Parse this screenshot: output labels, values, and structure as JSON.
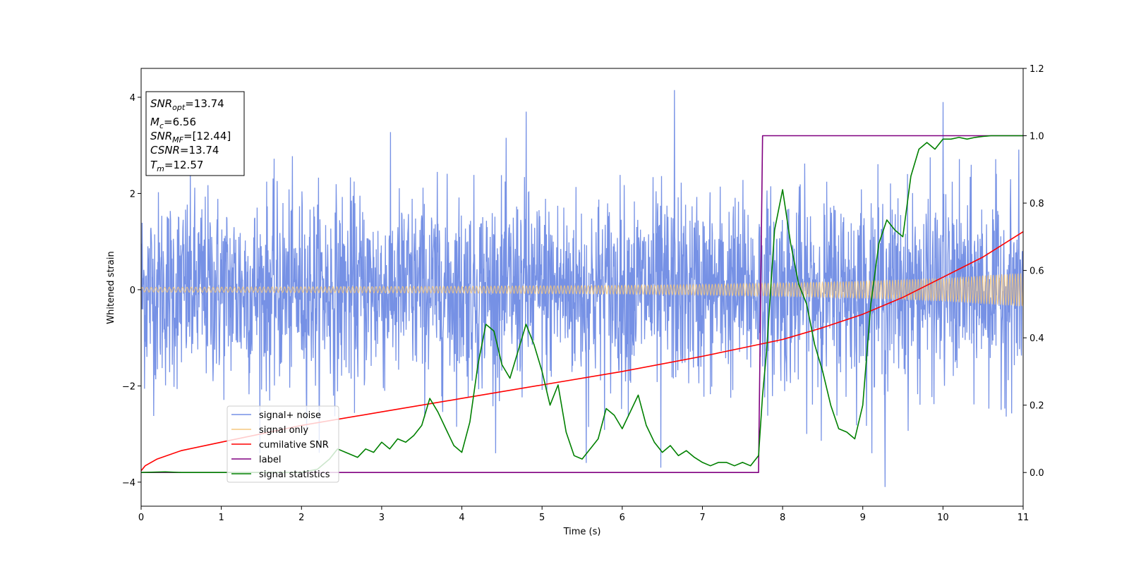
{
  "chart_data": {
    "type": "line",
    "xlabel": "Time (s)",
    "ylabel": "Whitened strain",
    "xlim": [
      0,
      11
    ],
    "ylim": [
      -4.5,
      4.6
    ],
    "y2lim": [
      -0.1,
      1.2
    ],
    "x_ticks": [
      "0",
      "1",
      "2",
      "3",
      "4",
      "5",
      "6",
      "7",
      "8",
      "9",
      "10",
      "11"
    ],
    "y_ticks": [
      "−4",
      "−2",
      "0",
      "2",
      "4"
    ],
    "y2_ticks": [
      "0.0",
      "0.2",
      "0.4",
      "0.6",
      "0.8",
      "1.0",
      "1.2"
    ],
    "legend_position": "lower-left",
    "info_box": {
      "snr_opt": {
        "base": "SNR",
        "sub": "opt",
        "value": "=13.74"
      },
      "mc": {
        "base": "M",
        "sub": "c",
        "value": "=6.56"
      },
      "snr_mf": {
        "base": "SNR",
        "sub": "MF",
        "value": "=[12.44]"
      },
      "csnr": {
        "base": "CSNR",
        "value": "=13.74"
      },
      "tm": {
        "base": "T",
        "sub": "m",
        "value": "=12.57"
      }
    },
    "series": [
      {
        "name": "signal+ noise",
        "color": "#7691e5",
        "axis": "left",
        "description": "whitened noisy strain, roughly Gaussian with std ~1, peaks up to ~4.2",
        "noise_std": 1.0,
        "peaks": [
          [
            6.65,
            4.15
          ],
          [
            10.0,
            3.9
          ],
          [
            4.8,
            3.7
          ],
          [
            9.28,
            -4.1
          ],
          [
            6.48,
            -3.7
          ],
          [
            5.55,
            -3.6
          ]
        ]
      },
      {
        "name": "signal only",
        "color": "#f5c77e",
        "axis": "left",
        "envelope": {
          "x": [
            0,
            2,
            4,
            6,
            7,
            8,
            9,
            10,
            11
          ],
          "amplitude": [
            0.05,
            0.06,
            0.07,
            0.09,
            0.11,
            0.14,
            0.18,
            0.24,
            0.35
          ]
        }
      },
      {
        "name": "cumilative SNR",
        "color": "#ff0000",
        "axis": "right",
        "x": [
          0,
          0.05,
          0.2,
          0.5,
          1,
          2,
          3,
          4,
          5,
          6,
          7,
          7.5,
          8,
          8.5,
          9,
          9.5,
          10,
          10.5,
          11
        ],
        "y": [
          0.005,
          0.02,
          0.04,
          0.065,
          0.09,
          0.14,
          0.18,
          0.22,
          0.26,
          0.3,
          0.345,
          0.37,
          0.395,
          0.43,
          0.47,
          0.52,
          0.58,
          0.64,
          0.715
        ]
      },
      {
        "name": "label",
        "color": "#800080",
        "axis": "right",
        "x": [
          0,
          7.7,
          7.75,
          11
        ],
        "y": [
          0,
          0,
          1,
          1
        ]
      },
      {
        "name": "signal statistics",
        "color": "#008000",
        "axis": "right",
        "x": [
          0,
          0.3,
          0.5,
          1.0,
          1.5,
          2.0,
          2.2,
          2.35,
          2.45,
          2.55,
          2.7,
          2.8,
          2.9,
          3.0,
          3.1,
          3.2,
          3.3,
          3.4,
          3.5,
          3.6,
          3.7,
          3.8,
          3.9,
          4.0,
          4.1,
          4.2,
          4.3,
          4.4,
          4.5,
          4.6,
          4.7,
          4.8,
          4.9,
          5.0,
          5.1,
          5.2,
          5.3,
          5.4,
          5.5,
          5.6,
          5.7,
          5.8,
          5.9,
          6.0,
          6.1,
          6.2,
          6.3,
          6.4,
          6.5,
          6.6,
          6.7,
          6.8,
          6.9,
          7.0,
          7.1,
          7.2,
          7.3,
          7.4,
          7.5,
          7.6,
          7.7,
          7.75,
          7.8,
          7.9,
          8.0,
          8.1,
          8.2,
          8.3,
          8.4,
          8.5,
          8.6,
          8.7,
          8.8,
          8.9,
          9.0,
          9.1,
          9.2,
          9.3,
          9.4,
          9.5,
          9.6,
          9.7,
          9.8,
          9.9,
          10.0,
          10.1,
          10.2,
          10.3,
          10.4,
          10.5,
          10.6,
          10.7,
          10.8,
          10.9,
          11.0
        ],
        "y": [
          0.0,
          0.002,
          0.0,
          0.0,
          0.0,
          0.0,
          0.01,
          0.04,
          0.07,
          0.06,
          0.045,
          0.07,
          0.06,
          0.09,
          0.07,
          0.1,
          0.09,
          0.11,
          0.14,
          0.22,
          0.18,
          0.13,
          0.08,
          0.06,
          0.15,
          0.32,
          0.44,
          0.42,
          0.32,
          0.28,
          0.36,
          0.44,
          0.38,
          0.3,
          0.2,
          0.26,
          0.12,
          0.05,
          0.04,
          0.07,
          0.1,
          0.19,
          0.17,
          0.13,
          0.18,
          0.23,
          0.14,
          0.09,
          0.06,
          0.08,
          0.05,
          0.065,
          0.045,
          0.03,
          0.02,
          0.03,
          0.03,
          0.02,
          0.03,
          0.02,
          0.05,
          0.23,
          0.36,
          0.72,
          0.84,
          0.68,
          0.56,
          0.5,
          0.38,
          0.3,
          0.2,
          0.13,
          0.12,
          0.1,
          0.2,
          0.5,
          0.68,
          0.75,
          0.72,
          0.7,
          0.88,
          0.96,
          0.98,
          0.96,
          0.99,
          0.99,
          0.995,
          0.99,
          0.995,
          0.998,
          1.0,
          1.0,
          1.0,
          1.0,
          1.0
        ]
      }
    ]
  }
}
